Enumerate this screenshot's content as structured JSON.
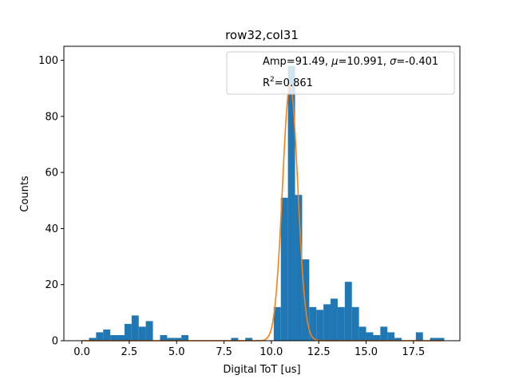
{
  "chart_data": {
    "type": "bar",
    "title": "row32,col31",
    "xlabel": "Digital ToT [us]",
    "ylabel": "Counts",
    "xlim": [
      -0.95,
      19.95
    ],
    "ylim": [
      0,
      105
    ],
    "x_ticks": [
      0.0,
      2.5,
      5.0,
      7.5,
      10.0,
      12.5,
      15.0,
      17.5
    ],
    "x_tick_labels": [
      "0.0",
      "2.5",
      "5.0",
      "7.5",
      "10.0",
      "12.5",
      "15.0",
      "17.5"
    ],
    "y_ticks": [
      0,
      20,
      40,
      60,
      80,
      100
    ],
    "y_tick_labels": [
      "0",
      "20",
      "40",
      "60",
      "80",
      "100"
    ],
    "grid": false,
    "bar_color": "#1f77b4",
    "fit_color": "#ff7f0e",
    "histogram": {
      "bin_width": 0.375,
      "bins": [
        {
          "x0": 0.375,
          "count": 1
        },
        {
          "x0": 0.75,
          "count": 3
        },
        {
          "x0": 1.125,
          "count": 4
        },
        {
          "x0": 1.5,
          "count": 2
        },
        {
          "x0": 1.875,
          "count": 2
        },
        {
          "x0": 2.25,
          "count": 6
        },
        {
          "x0": 2.625,
          "count": 9
        },
        {
          "x0": 3.0,
          "count": 5
        },
        {
          "x0": 3.375,
          "count": 7
        },
        {
          "x0": 3.75,
          "count": 0
        },
        {
          "x0": 4.125,
          "count": 2
        },
        {
          "x0": 4.5,
          "count": 1
        },
        {
          "x0": 4.875,
          "count": 1
        },
        {
          "x0": 5.25,
          "count": 2
        },
        {
          "x0": 7.875,
          "count": 1
        },
        {
          "x0": 8.625,
          "count": 1
        },
        {
          "x0": 10.125,
          "count": 12
        },
        {
          "x0": 10.5,
          "count": 51
        },
        {
          "x0": 10.875,
          "count": 98
        },
        {
          "x0": 11.25,
          "count": 52
        },
        {
          "x0": 11.625,
          "count": 29
        },
        {
          "x0": 12.0,
          "count": 12
        },
        {
          "x0": 12.375,
          "count": 11
        },
        {
          "x0": 12.75,
          "count": 13
        },
        {
          "x0": 13.125,
          "count": 15
        },
        {
          "x0": 13.5,
          "count": 12
        },
        {
          "x0": 13.875,
          "count": 21
        },
        {
          "x0": 14.25,
          "count": 12
        },
        {
          "x0": 14.625,
          "count": 5
        },
        {
          "x0": 15.0,
          "count": 3
        },
        {
          "x0": 15.375,
          "count": 2
        },
        {
          "x0": 15.75,
          "count": 5
        },
        {
          "x0": 16.125,
          "count": 3
        },
        {
          "x0": 16.5,
          "count": 1
        },
        {
          "x0": 17.625,
          "count": 3
        },
        {
          "x0": 18.375,
          "count": 1
        },
        {
          "x0": 18.75,
          "count": 1
        }
      ]
    },
    "fit": {
      "amp": 91.49,
      "mu": 10.991,
      "sigma": -0.401,
      "x_range": [
        0.0,
        19.0
      ]
    },
    "legend": {
      "placement": "top-right",
      "line1_prefix": "Amp=91.49, ",
      "mu_symbol": "μ",
      "line1_mid": "=10.991, ",
      "sigma_symbol": "σ",
      "line1_suffix": "=-0.401",
      "line2_prefix": "R",
      "line2_sup": "2",
      "line2_suffix": "=0.861"
    }
  }
}
